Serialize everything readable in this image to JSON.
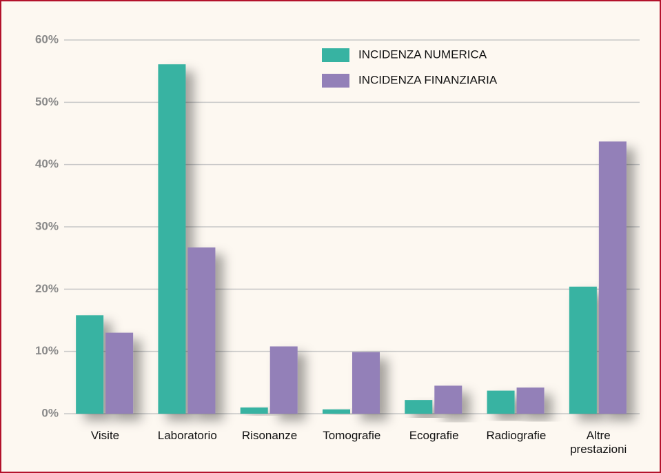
{
  "chart_data": {
    "type": "bar",
    "categories": [
      "Visite",
      "Laboratorio",
      "Risonanze",
      "Tomografie",
      "Ecografie",
      "Radiografie",
      "Altre\nprestazioni"
    ],
    "series": [
      {
        "name": "INCIDENZA NUMERICA",
        "color": "#37b3a2",
        "values": [
          15.8,
          56.1,
          1.0,
          0.7,
          2.2,
          3.7,
          20.4
        ]
      },
      {
        "name": "INCIDENZA FINANZIARIA",
        "color": "#9380b8",
        "values": [
          13.0,
          26.7,
          10.8,
          9.9,
          4.5,
          4.2,
          43.7
        ]
      }
    ],
    "ylim": [
      0,
      60
    ],
    "yticks": [
      {
        "value": 0,
        "label": "0%"
      },
      {
        "value": 10,
        "label": "10%"
      },
      {
        "value": 20,
        "label": "20%"
      },
      {
        "value": 30,
        "label": "30%"
      },
      {
        "value": 40,
        "label": "40%"
      },
      {
        "value": 50,
        "label": "50%"
      },
      {
        "value": 60,
        "label": "60%"
      }
    ],
    "grid": true,
    "legend": "top-center"
  }
}
